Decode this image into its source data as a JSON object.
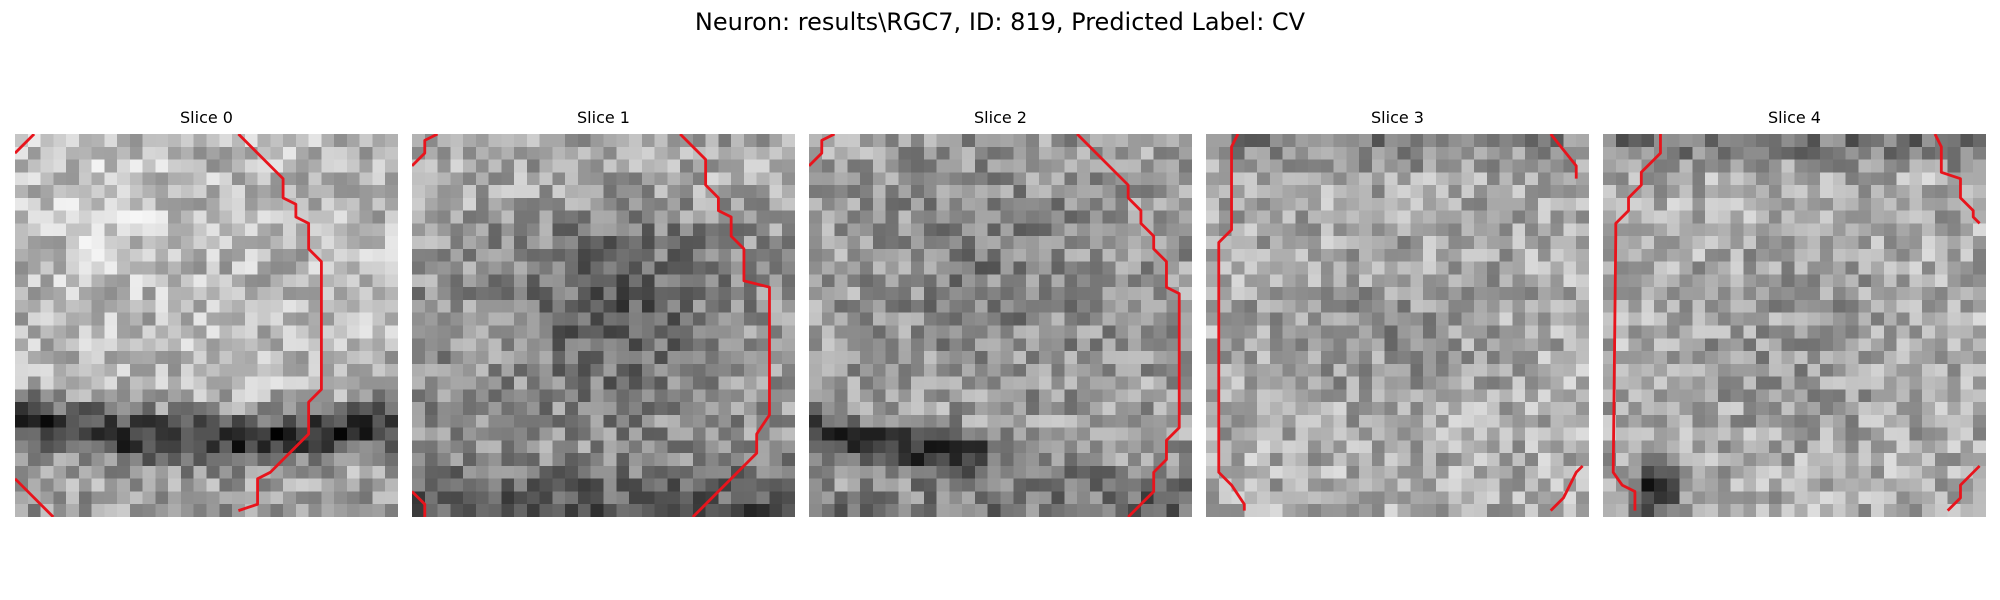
{
  "figure": {
    "title": "Neuron: results\\RGC7, ID: 819, Predicted Label: CV",
    "colormap": "gray",
    "contour_color": "#e8141c"
  },
  "slices": [
    {
      "label": "Slice 0"
    },
    {
      "label": "Slice 1"
    },
    {
      "label": "Slice 2"
    },
    {
      "label": "Slice 3"
    },
    {
      "label": "Slice 4"
    }
  ]
}
